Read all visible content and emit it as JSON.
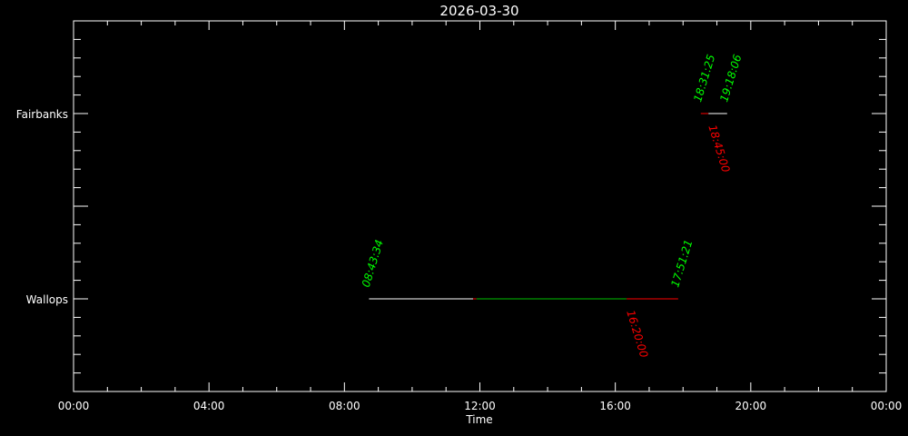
{
  "chart_data": {
    "type": "timeline",
    "title": "2026-03-30",
    "x_label": "Time",
    "xlim": [
      0,
      24
    ],
    "xticks": [
      {
        "value": 0,
        "label": "00:00"
      },
      {
        "value": 4,
        "label": "04:00"
      },
      {
        "value": 8,
        "label": "08:00"
      },
      {
        "value": 12,
        "label": "12:00"
      },
      {
        "value": 16,
        "label": "16:00"
      },
      {
        "value": 20,
        "label": "20:00"
      },
      {
        "value": 24,
        "label": "00:00"
      }
    ],
    "x_minor": 4,
    "ylim": [
      0,
      4
    ],
    "yticks": [
      {
        "value": 1,
        "label": "Wallops"
      },
      {
        "value": 3,
        "label": "Fairbanks"
      }
    ],
    "y_major_step": 1,
    "y_minor": 5,
    "series": [
      {
        "name": "Wallops",
        "y": 1,
        "x": [
          8.72611,
          11.8,
          11.9,
          16.33333,
          17.85583
        ],
        "x_labels": [
          "08:43:34",
          null,
          null,
          "16:20:00",
          "17:51:21"
        ],
        "label_colors": [
          "#00ff00",
          null,
          null,
          "#ff0000",
          "#00ff00"
        ],
        "label_sides": [
          "above",
          null,
          null,
          "below",
          "above"
        ],
        "segment_colors": [
          "#ffffff",
          "#ff0000",
          "#00c000",
          "#ff0000"
        ]
      },
      {
        "name": "Fairbanks",
        "y": 3,
        "x": [
          18.52361,
          18.75,
          19.30167
        ],
        "x_labels": [
          "18:31:25",
          "18:45:00",
          "19:18:06"
        ],
        "label_colors": [
          "#00ff00",
          "#ff0000",
          "#00ff00"
        ],
        "label_sides": [
          "above",
          "below",
          "above"
        ],
        "segment_colors": [
          "#ff0000",
          "#ffffff"
        ]
      }
    ]
  }
}
